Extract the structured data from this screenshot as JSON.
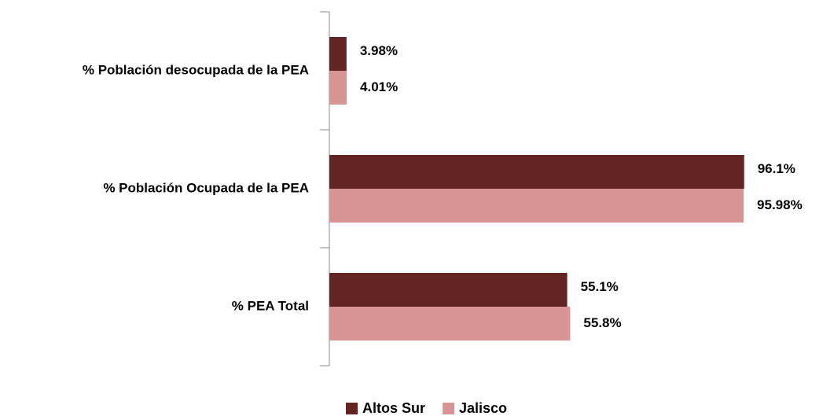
{
  "chart_data": {
    "type": "bar",
    "orientation": "horizontal",
    "categories": [
      "% Población desocupada de la PEA",
      "% Población Ocupada de la PEA",
      "% PEA Total"
    ],
    "series": [
      {
        "name": "Altos Sur",
        "color": "#632523",
        "values": [
          3.98,
          96.1,
          55.1
        ],
        "value_labels": [
          "3.98%",
          "96.1%",
          "55.1%"
        ]
      },
      {
        "name": "Jalisco",
        "color": "#d99594",
        "values": [
          4.01,
          95.98,
          55.8
        ],
        "value_labels": [
          "4.01%",
          "95.98%",
          "55.8%"
        ]
      }
    ],
    "xlim": [
      0,
      114
    ],
    "legend": "bottom"
  }
}
